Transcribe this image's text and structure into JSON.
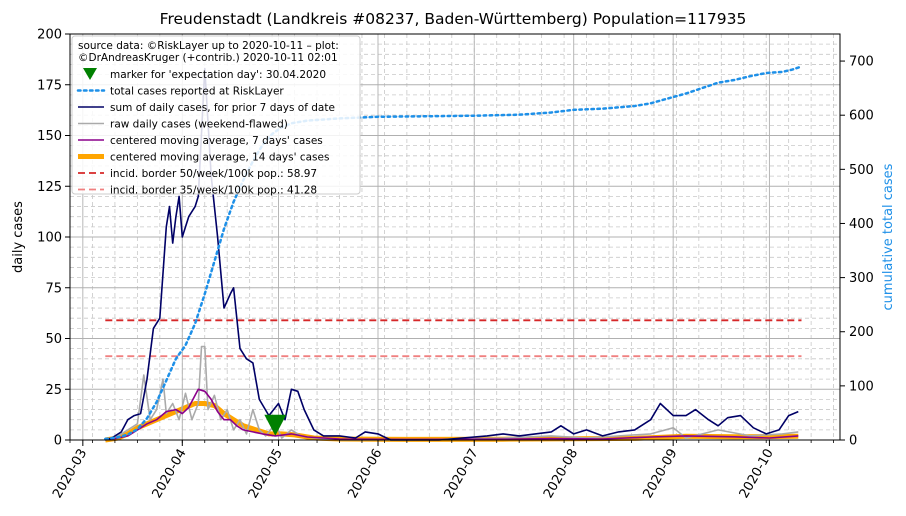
{
  "chart_data": {
    "type": "line",
    "title": "Freudenstadt (Landkreis #08237, Baden-Württemberg) Population=117935",
    "ylabel": "daily cases",
    "ylabel_right": "cumulative total cases",
    "ylim": [
      0,
      200
    ],
    "ylim_right": [
      0,
      750
    ],
    "xlim": [
      "2020-02-26",
      "2020-10-23"
    ],
    "grid": true,
    "legend_placement": "top-left",
    "yticks": [
      0,
      25,
      50,
      75,
      100,
      125,
      150,
      175,
      200
    ],
    "yticks_right": [
      0,
      100,
      200,
      300,
      400,
      500,
      600,
      700
    ],
    "xticks": [
      {
        "date": "2020-03-01",
        "label": "2020-03"
      },
      {
        "date": "2020-04-01",
        "label": "2020-04"
      },
      {
        "date": "2020-05-01",
        "label": "2020-05"
      },
      {
        "date": "2020-06-01",
        "label": "2020-06"
      },
      {
        "date": "2020-07-01",
        "label": "2020-07"
      },
      {
        "date": "2020-08-01",
        "label": "2020-08"
      },
      {
        "date": "2020-09-01",
        "label": "2020-09"
      },
      {
        "date": "2020-10-01",
        "label": "2020-10"
      }
    ],
    "legend_title": "source data: ©RiskLayer up to 2020-10-11 – plot:\n©DrAndreasKruger (+contrib.) 2020-10-11 02:01",
    "marker": {
      "name": "marker for 'expectation day': 30.04.2020",
      "date": "2020-04-30",
      "value": 7.5,
      "color": "#008000"
    },
    "series": [
      {
        "name": "total cases reported at RiskLayer",
        "axis": "right",
        "color": "#1e90e8",
        "style": "dotted",
        "points": [
          [
            "2020-03-08",
            2
          ],
          [
            "2020-03-12",
            5
          ],
          [
            "2020-03-15",
            10
          ],
          [
            "2020-03-18",
            20
          ],
          [
            "2020-03-21",
            40
          ],
          [
            "2020-03-24",
            70
          ],
          [
            "2020-03-27",
            110
          ],
          [
            "2020-03-30",
            150
          ],
          [
            "2020-04-02",
            175
          ],
          [
            "2020-04-05",
            215
          ],
          [
            "2020-04-08",
            270
          ],
          [
            "2020-04-11",
            330
          ],
          [
            "2020-04-14",
            390
          ],
          [
            "2020-04-17",
            440
          ],
          [
            "2020-04-20",
            480
          ],
          [
            "2020-04-23",
            515
          ],
          [
            "2020-04-26",
            545
          ],
          [
            "2020-04-29",
            565
          ],
          [
            "2020-05-02",
            578
          ],
          [
            "2020-05-05",
            585
          ],
          [
            "2020-05-10",
            590
          ],
          [
            "2020-05-20",
            594
          ],
          [
            "2020-06-01",
            597
          ],
          [
            "2020-06-15",
            598
          ],
          [
            "2020-07-01",
            599
          ],
          [
            "2020-07-15",
            601
          ],
          [
            "2020-07-25",
            605
          ],
          [
            "2020-08-01",
            610
          ],
          [
            "2020-08-10",
            612
          ],
          [
            "2020-08-20",
            617
          ],
          [
            "2020-08-25",
            622
          ],
          [
            "2020-08-31",
            632
          ],
          [
            "2020-09-05",
            640
          ],
          [
            "2020-09-10",
            650
          ],
          [
            "2020-09-15",
            660
          ],
          [
            "2020-09-20",
            665
          ],
          [
            "2020-09-25",
            672
          ],
          [
            "2020-09-30",
            678
          ],
          [
            "2020-10-05",
            680
          ],
          [
            "2020-10-08",
            684
          ],
          [
            "2020-10-11",
            690
          ]
        ]
      },
      {
        "name": "sum of daily cases, for prior 7 days of date",
        "axis": "left",
        "color": "#000066",
        "style": "solid",
        "points": [
          [
            "2020-03-08",
            0
          ],
          [
            "2020-03-10",
            1
          ],
          [
            "2020-03-13",
            4
          ],
          [
            "2020-03-15",
            10
          ],
          [
            "2020-03-17",
            12
          ],
          [
            "2020-03-19",
            13
          ],
          [
            "2020-03-21",
            30
          ],
          [
            "2020-03-23",
            55
          ],
          [
            "2020-03-25",
            60
          ],
          [
            "2020-03-27",
            105
          ],
          [
            "2020-03-28",
            115
          ],
          [
            "2020-03-29",
            97
          ],
          [
            "2020-03-30",
            110
          ],
          [
            "2020-03-31",
            120
          ],
          [
            "2020-04-01",
            100
          ],
          [
            "2020-04-03",
            110
          ],
          [
            "2020-04-05",
            115
          ],
          [
            "2020-04-06",
            120
          ],
          [
            "2020-04-08",
            183
          ],
          [
            "2020-04-10",
            130
          ],
          [
            "2020-04-12",
            100
          ],
          [
            "2020-04-14",
            65
          ],
          [
            "2020-04-16",
            72
          ],
          [
            "2020-04-17",
            75
          ],
          [
            "2020-04-19",
            45
          ],
          [
            "2020-04-21",
            40
          ],
          [
            "2020-04-23",
            38
          ],
          [
            "2020-04-25",
            20
          ],
          [
            "2020-04-28",
            12
          ],
          [
            "2020-05-01",
            18
          ],
          [
            "2020-05-03",
            10
          ],
          [
            "2020-05-05",
            25
          ],
          [
            "2020-05-07",
            24
          ],
          [
            "2020-05-09",
            15
          ],
          [
            "2020-05-12",
            5
          ],
          [
            "2020-05-15",
            2
          ],
          [
            "2020-05-20",
            2
          ],
          [
            "2020-05-25",
            1
          ],
          [
            "2020-05-28",
            4
          ],
          [
            "2020-06-01",
            3
          ],
          [
            "2020-06-05",
            0
          ],
          [
            "2020-06-20",
            0
          ],
          [
            "2020-07-05",
            2
          ],
          [
            "2020-07-10",
            3
          ],
          [
            "2020-07-15",
            2
          ],
          [
            "2020-07-20",
            3
          ],
          [
            "2020-07-25",
            4
          ],
          [
            "2020-07-28",
            7
          ],
          [
            "2020-08-01",
            3
          ],
          [
            "2020-08-05",
            5
          ],
          [
            "2020-08-10",
            2
          ],
          [
            "2020-08-15",
            4
          ],
          [
            "2020-08-20",
            5
          ],
          [
            "2020-08-25",
            10
          ],
          [
            "2020-08-28",
            18
          ],
          [
            "2020-09-01",
            12
          ],
          [
            "2020-09-05",
            12
          ],
          [
            "2020-09-08",
            15
          ],
          [
            "2020-09-12",
            10
          ],
          [
            "2020-09-15",
            7
          ],
          [
            "2020-09-18",
            11
          ],
          [
            "2020-09-22",
            12
          ],
          [
            "2020-09-26",
            6
          ],
          [
            "2020-09-30",
            3
          ],
          [
            "2020-10-04",
            5
          ],
          [
            "2020-10-07",
            12
          ],
          [
            "2020-10-10",
            14
          ]
        ]
      },
      {
        "name": "raw daily cases (weekend-flawed)",
        "axis": "left",
        "color": "#aaaaaa",
        "style": "solid",
        "points": [
          [
            "2020-03-08",
            0
          ],
          [
            "2020-03-12",
            2
          ],
          [
            "2020-03-15",
            5
          ],
          [
            "2020-03-18",
            8
          ],
          [
            "2020-03-20",
            32
          ],
          [
            "2020-03-22",
            10
          ],
          [
            "2020-03-24",
            15
          ],
          [
            "2020-03-26",
            30
          ],
          [
            "2020-03-27",
            13
          ],
          [
            "2020-03-29",
            18
          ],
          [
            "2020-03-31",
            10
          ],
          [
            "2020-04-02",
            23
          ],
          [
            "2020-04-04",
            10
          ],
          [
            "2020-04-06",
            18
          ],
          [
            "2020-04-07",
            46
          ],
          [
            "2020-04-08",
            46
          ],
          [
            "2020-04-09",
            15
          ],
          [
            "2020-04-11",
            22
          ],
          [
            "2020-04-13",
            10
          ],
          [
            "2020-04-15",
            15
          ],
          [
            "2020-04-17",
            5
          ],
          [
            "2020-04-19",
            10
          ],
          [
            "2020-04-21",
            3
          ],
          [
            "2020-04-23",
            15
          ],
          [
            "2020-04-25",
            5
          ],
          [
            "2020-04-27",
            2
          ],
          [
            "2020-04-30",
            8
          ],
          [
            "2020-05-02",
            1
          ],
          [
            "2020-05-05",
            5
          ],
          [
            "2020-05-08",
            2
          ],
          [
            "2020-05-12",
            1
          ],
          [
            "2020-05-20",
            0
          ],
          [
            "2020-06-10",
            0
          ],
          [
            "2020-07-10",
            1
          ],
          [
            "2020-07-25",
            2
          ],
          [
            "2020-08-05",
            1
          ],
          [
            "2020-08-25",
            3
          ],
          [
            "2020-09-01",
            6
          ],
          [
            "2020-09-05",
            1
          ],
          [
            "2020-09-15",
            5
          ],
          [
            "2020-09-25",
            2
          ],
          [
            "2020-10-05",
            3
          ],
          [
            "2020-10-10",
            4
          ]
        ]
      },
      {
        "name": "centered moving average, 7 days' cases",
        "axis": "left",
        "color": "#8b008b",
        "style": "solid",
        "points": [
          [
            "2020-03-08",
            0
          ],
          [
            "2020-03-12",
            1
          ],
          [
            "2020-03-15",
            2
          ],
          [
            "2020-03-18",
            5
          ],
          [
            "2020-03-21",
            8
          ],
          [
            "2020-03-24",
            10
          ],
          [
            "2020-03-27",
            14
          ],
          [
            "2020-03-30",
            15
          ],
          [
            "2020-04-01",
            13
          ],
          [
            "2020-04-03",
            16
          ],
          [
            "2020-04-05",
            22
          ],
          [
            "2020-04-06",
            25
          ],
          [
            "2020-04-08",
            24
          ],
          [
            "2020-04-10",
            20
          ],
          [
            "2020-04-12",
            14
          ],
          [
            "2020-04-14",
            10
          ],
          [
            "2020-04-16",
            10
          ],
          [
            "2020-04-18",
            7
          ],
          [
            "2020-04-20",
            5
          ],
          [
            "2020-04-23",
            4
          ],
          [
            "2020-04-26",
            3
          ],
          [
            "2020-04-30",
            2
          ],
          [
            "2020-05-05",
            3
          ],
          [
            "2020-05-10",
            1.5
          ],
          [
            "2020-05-20",
            0.5
          ],
          [
            "2020-06-10",
            0.3
          ],
          [
            "2020-07-10",
            0.4
          ],
          [
            "2020-07-25",
            0.7
          ],
          [
            "2020-08-10",
            0.5
          ],
          [
            "2020-08-25",
            1.5
          ],
          [
            "2020-09-05",
            2
          ],
          [
            "2020-09-20",
            1.6
          ],
          [
            "2020-10-01",
            1
          ],
          [
            "2020-10-10",
            2
          ]
        ]
      },
      {
        "name": "centered moving average, 14 days' cases",
        "axis": "left",
        "color": "#ffa500",
        "style": "thick",
        "points": [
          [
            "2020-03-08",
            0
          ],
          [
            "2020-03-12",
            1
          ],
          [
            "2020-03-15",
            3
          ],
          [
            "2020-03-18",
            6
          ],
          [
            "2020-03-21",
            8
          ],
          [
            "2020-03-24",
            10
          ],
          [
            "2020-03-27",
            12
          ],
          [
            "2020-03-30",
            14
          ],
          [
            "2020-04-02",
            16
          ],
          [
            "2020-04-05",
            18
          ],
          [
            "2020-04-08",
            18
          ],
          [
            "2020-04-11",
            17
          ],
          [
            "2020-04-14",
            13
          ],
          [
            "2020-04-17",
            10
          ],
          [
            "2020-04-20",
            7
          ],
          [
            "2020-04-24",
            5
          ],
          [
            "2020-04-28",
            3
          ],
          [
            "2020-05-02",
            3
          ],
          [
            "2020-05-06",
            2.5
          ],
          [
            "2020-05-12",
            1
          ],
          [
            "2020-05-20",
            0.5
          ],
          [
            "2020-06-10",
            0.3
          ],
          [
            "2020-07-10",
            0.4
          ],
          [
            "2020-08-01",
            0.6
          ],
          [
            "2020-08-20",
            0.8
          ],
          [
            "2020-09-05",
            1.8
          ],
          [
            "2020-09-20",
            1.6
          ],
          [
            "2020-10-10",
            1.8
          ]
        ]
      }
    ],
    "hlines": [
      {
        "name": "incid. border 50/week/100k pop.: 58.97",
        "value": 58.97,
        "color": "#d62728",
        "style": "dashed",
        "from": "2020-03-08",
        "to": "2020-10-11"
      },
      {
        "name": "incid. border 35/week/100k pop.: 41.28",
        "value": 41.28,
        "color": "#f08080",
        "style": "dashed",
        "from": "2020-03-08",
        "to": "2020-10-11"
      }
    ]
  }
}
